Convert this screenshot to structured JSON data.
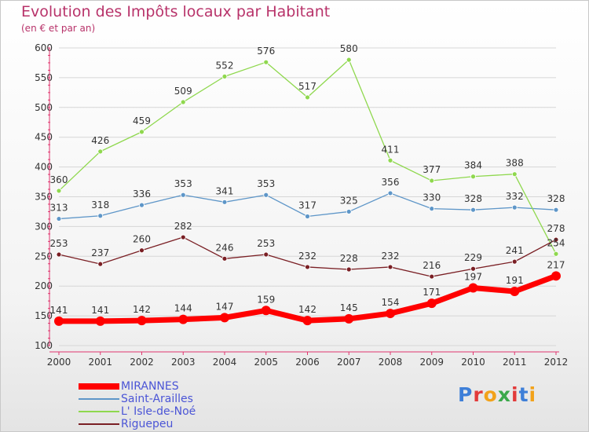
{
  "title": "Evolution des Impôts locaux par Habitant",
  "subtitle": "(en € et par an)",
  "logo_text": "Proxiti",
  "colors": {
    "title": "#b8336a",
    "axis": "#e0356e",
    "grid": "#d6d6d6",
    "legend_text": "#4b55d6"
  },
  "chart_data": {
    "type": "line",
    "x": [
      "2000",
      "2001",
      "2002",
      "2003",
      "2004",
      "2005",
      "2006",
      "2007",
      "2008",
      "2009",
      "2010",
      "2011",
      "2012"
    ],
    "ylim": [
      100,
      600
    ],
    "yticks": [
      100,
      150,
      200,
      250,
      300,
      350,
      400,
      450,
      500,
      550,
      600
    ],
    "grid": true,
    "legend_position": "bottom-left",
    "series": [
      {
        "name": "MIRANNES",
        "color": "#ff0000",
        "values": [
          141,
          141,
          142,
          144,
          147,
          159,
          142,
          145,
          154,
          171,
          197,
          191,
          217
        ],
        "thick": true
      },
      {
        "name": "Saint-Arailles",
        "color": "#5e96c8",
        "values": [
          313,
          318,
          336,
          353,
          341,
          353,
          317,
          325,
          356,
          330,
          328,
          332,
          328
        ],
        "thick": false
      },
      {
        "name": "L' Isle-de-Noé",
        "color": "#8fd84e",
        "values": [
          360,
          426,
          459,
          509,
          552,
          576,
          517,
          580,
          411,
          377,
          384,
          388,
          254
        ],
        "thick": false
      },
      {
        "name": "Riguepeu",
        "color": "#7a1f24",
        "values": [
          253,
          237,
          260,
          282,
          246,
          253,
          232,
          228,
          232,
          216,
          229,
          241,
          278
        ],
        "thick": false
      }
    ]
  }
}
